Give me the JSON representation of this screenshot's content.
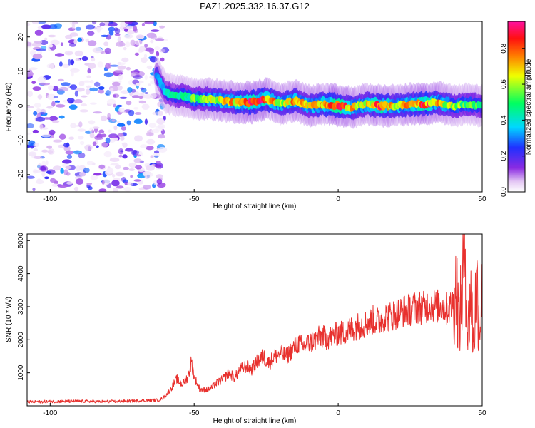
{
  "title": "PAZ1.2025.332.16.37.G12",
  "spectrogram": {
    "type": "heatmap",
    "xlabel": "Height of straight line (km)",
    "ylabel": "Frequency (Hz)",
    "xlim": [
      -108,
      50
    ],
    "ylim": [
      -25,
      24.5
    ],
    "xticks": [
      -100,
      -50,
      0,
      50
    ],
    "yticks": [
      -20,
      -10,
      0,
      10,
      20
    ],
    "colorbar": {
      "label": "Normalized spectral amplitude",
      "range": [
        0.0,
        0.95
      ],
      "ticks": [
        0.0,
        0.2,
        0.4,
        0.6,
        0.8
      ]
    },
    "noise_region_x": [
      -108,
      -60
    ],
    "trace": {
      "x": [
        -63,
        -60,
        -57,
        -54,
        -50,
        -45,
        -40,
        -35,
        -30,
        -25,
        -20,
        -15,
        -10,
        -5,
        0,
        5,
        10,
        15,
        20,
        25,
        30,
        35,
        40,
        45,
        50
      ],
      "y": [
        9,
        4,
        3,
        3,
        2,
        2,
        1.5,
        1,
        1,
        2,
        0.5,
        1.5,
        0,
        0.5,
        0,
        -0.5,
        0.5,
        0,
        0,
        0.5,
        0.5,
        1,
        0,
        0.5,
        0
      ],
      "peak_amplitude": [
        0.3,
        0.35,
        0.4,
        0.45,
        0.5,
        0.6,
        0.65,
        0.7,
        0.85,
        0.8,
        0.6,
        0.7,
        0.6,
        0.75,
        0.9,
        0.65,
        0.6,
        0.8,
        0.6,
        0.7,
        0.85,
        0.65,
        0.55,
        0.5,
        0.45
      ]
    }
  },
  "chart_data": {
    "type": "line",
    "title": "PAZ1.2025.332.16.37.G12",
    "xlabel": "Height of straight line (km)",
    "ylabel": "SNR (10 * v/v)",
    "xlim": [
      -108,
      50
    ],
    "ylim": [
      0,
      5200
    ],
    "xticks": [
      -100,
      -50,
      0,
      50
    ],
    "yticks": [
      1000,
      2000,
      3000,
      4000,
      5000
    ],
    "color": "#e8312e",
    "series": [
      {
        "name": "SNR",
        "x": [
          -108,
          -100,
          -90,
          -80,
          -70,
          -62,
          -60,
          -58,
          -56,
          -55,
          -54,
          -52,
          -51,
          -50,
          -48,
          -46,
          -44,
          -42,
          -40,
          -38,
          -36,
          -34,
          -32,
          -30,
          -28,
          -26,
          -24,
          -22,
          -20,
          -18,
          -16,
          -14,
          -12,
          -10,
          -8,
          -6,
          -4,
          -2,
          0,
          2,
          4,
          6,
          8,
          10,
          12,
          14,
          16,
          18,
          20,
          22,
          24,
          26,
          28,
          30,
          32,
          34,
          36,
          38,
          40,
          41,
          42,
          43,
          44,
          45,
          46,
          47,
          48,
          49,
          50
        ],
        "y": [
          120,
          130,
          140,
          130,
          150,
          180,
          300,
          520,
          820,
          700,
          650,
          900,
          1350,
          880,
          500,
          480,
          540,
          700,
          800,
          1000,
          850,
          1100,
          1200,
          1100,
          1350,
          1500,
          1300,
          1500,
          1600,
          1500,
          1700,
          1900,
          1800,
          1900,
          2000,
          2100,
          2050,
          2100,
          2200,
          2200,
          2300,
          2400,
          2450,
          2500,
          2600,
          2550,
          2700,
          2700,
          2800,
          2850,
          2900,
          2950,
          3000,
          2950,
          3100,
          3000,
          3050,
          2900,
          3100,
          3700,
          2500,
          3400,
          5150,
          2000,
          3600,
          1800,
          3800,
          2500,
          3200
        ]
      }
    ]
  }
}
